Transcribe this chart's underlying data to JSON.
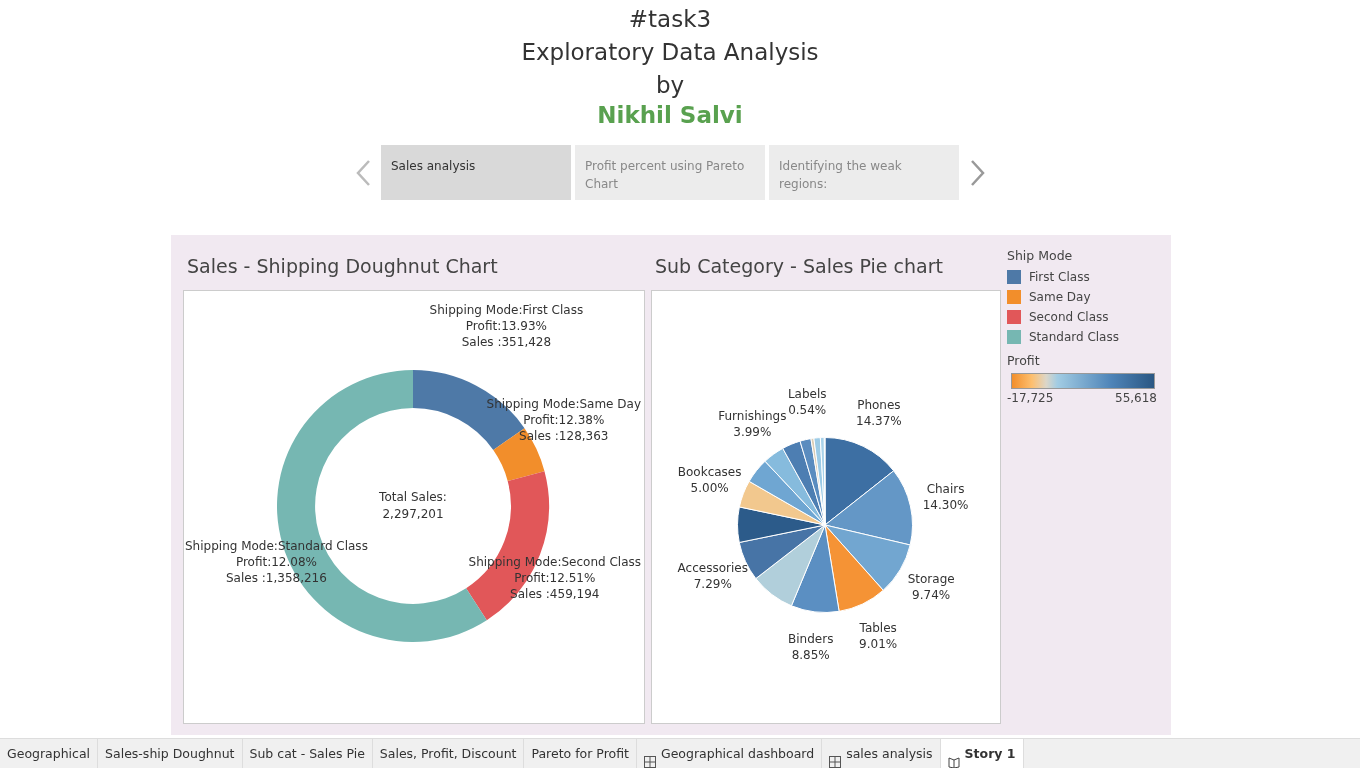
{
  "chart_data": [
    {
      "type": "other",
      "title": "#task3\nExploratory Data Analysis\nby",
      "subtitle": "Nikhil Salvi",
      "annotations": [
        "Sales analysis",
        "Profit percent using Pareto Chart",
        "Identifying the weak regions:"
      ]
    },
    {
      "type": "donut",
      "title": "Sales - Shipping Doughnut Chart",
      "legend": "right",
      "legend_title": "Ship Mode",
      "categories": [
        "First Class",
        "Same Day",
        "Second Class",
        "Standard Class"
      ],
      "values": [
        351428,
        128363,
        459194,
        1358216
      ],
      "colors": [
        "#4e79a7",
        "#f28e2b",
        "#e15759",
        "#76b7b2"
      ],
      "value_labels": [
        "Shipping Mode:First Class\nProfit:13.93%\nSales :351,428",
        "Shipping Mode:Same Day\nProfit:12.38%\nSales :128,363",
        "Shipping Mode:Second Class\nProfit:12.51%\nSales :459,194",
        "Shipping Mode:Standard Class\nProfit:12.08%\nSales :1,358,216"
      ],
      "annotations": [
        "Total Sales:\n2,297,201"
      ]
    },
    {
      "type": "pie",
      "title": "Sub Category - Sales Pie chart",
      "clabel": "Profit",
      "annotations": [
        "-17,725",
        "55,618"
      ],
      "categories": [
        "Phones",
        "Chairs",
        "Storage",
        "Tables",
        "Binders",
        null,
        "Accessories",
        null,
        "Bookcases",
        null,
        "Furnishings",
        null,
        null,
        "Labels",
        null,
        null,
        null
      ],
      "values": [
        14.37,
        14.3,
        9.74,
        9.01,
        8.85,
        8.24,
        7.29,
        6.51,
        5.0,
        4.68,
        3.99,
        3.42,
        2.03,
        0.54,
        1.18,
        0.72,
        0.13
      ],
      "colors": [
        "#3d6fa3",
        "#6497c6",
        "#72a6d0",
        "#f59335",
        "#5b8fc2",
        "#b1cfdb",
        "#4774a6",
        "#2c5b8a",
        "#f2c88e",
        "#6fa6d2",
        "#86bbdd",
        "#4d7eb2",
        "#5a8cbf",
        "#dccdb4",
        "#9ccbe6",
        "#a8d2ea",
        "#8ec3e3"
      ],
      "value_labels": [
        "14.37%",
        "14.30%",
        "9.74%",
        "9.01%",
        "8.85%",
        null,
        "7.29%",
        null,
        "5.00%",
        null,
        "3.99%",
        null,
        null,
        "0.54%",
        null,
        null,
        null
      ]
    },
    {
      "type": "other",
      "annotations": [
        "Geographical",
        "Sales-ship Doughnut",
        "Sub cat - Sales Pie",
        "Sales, Profit, Discount",
        "Pareto for Profit",
        "Geographical dashboard",
        "sales analysis",
        "Story 1"
      ]
    }
  ]
}
